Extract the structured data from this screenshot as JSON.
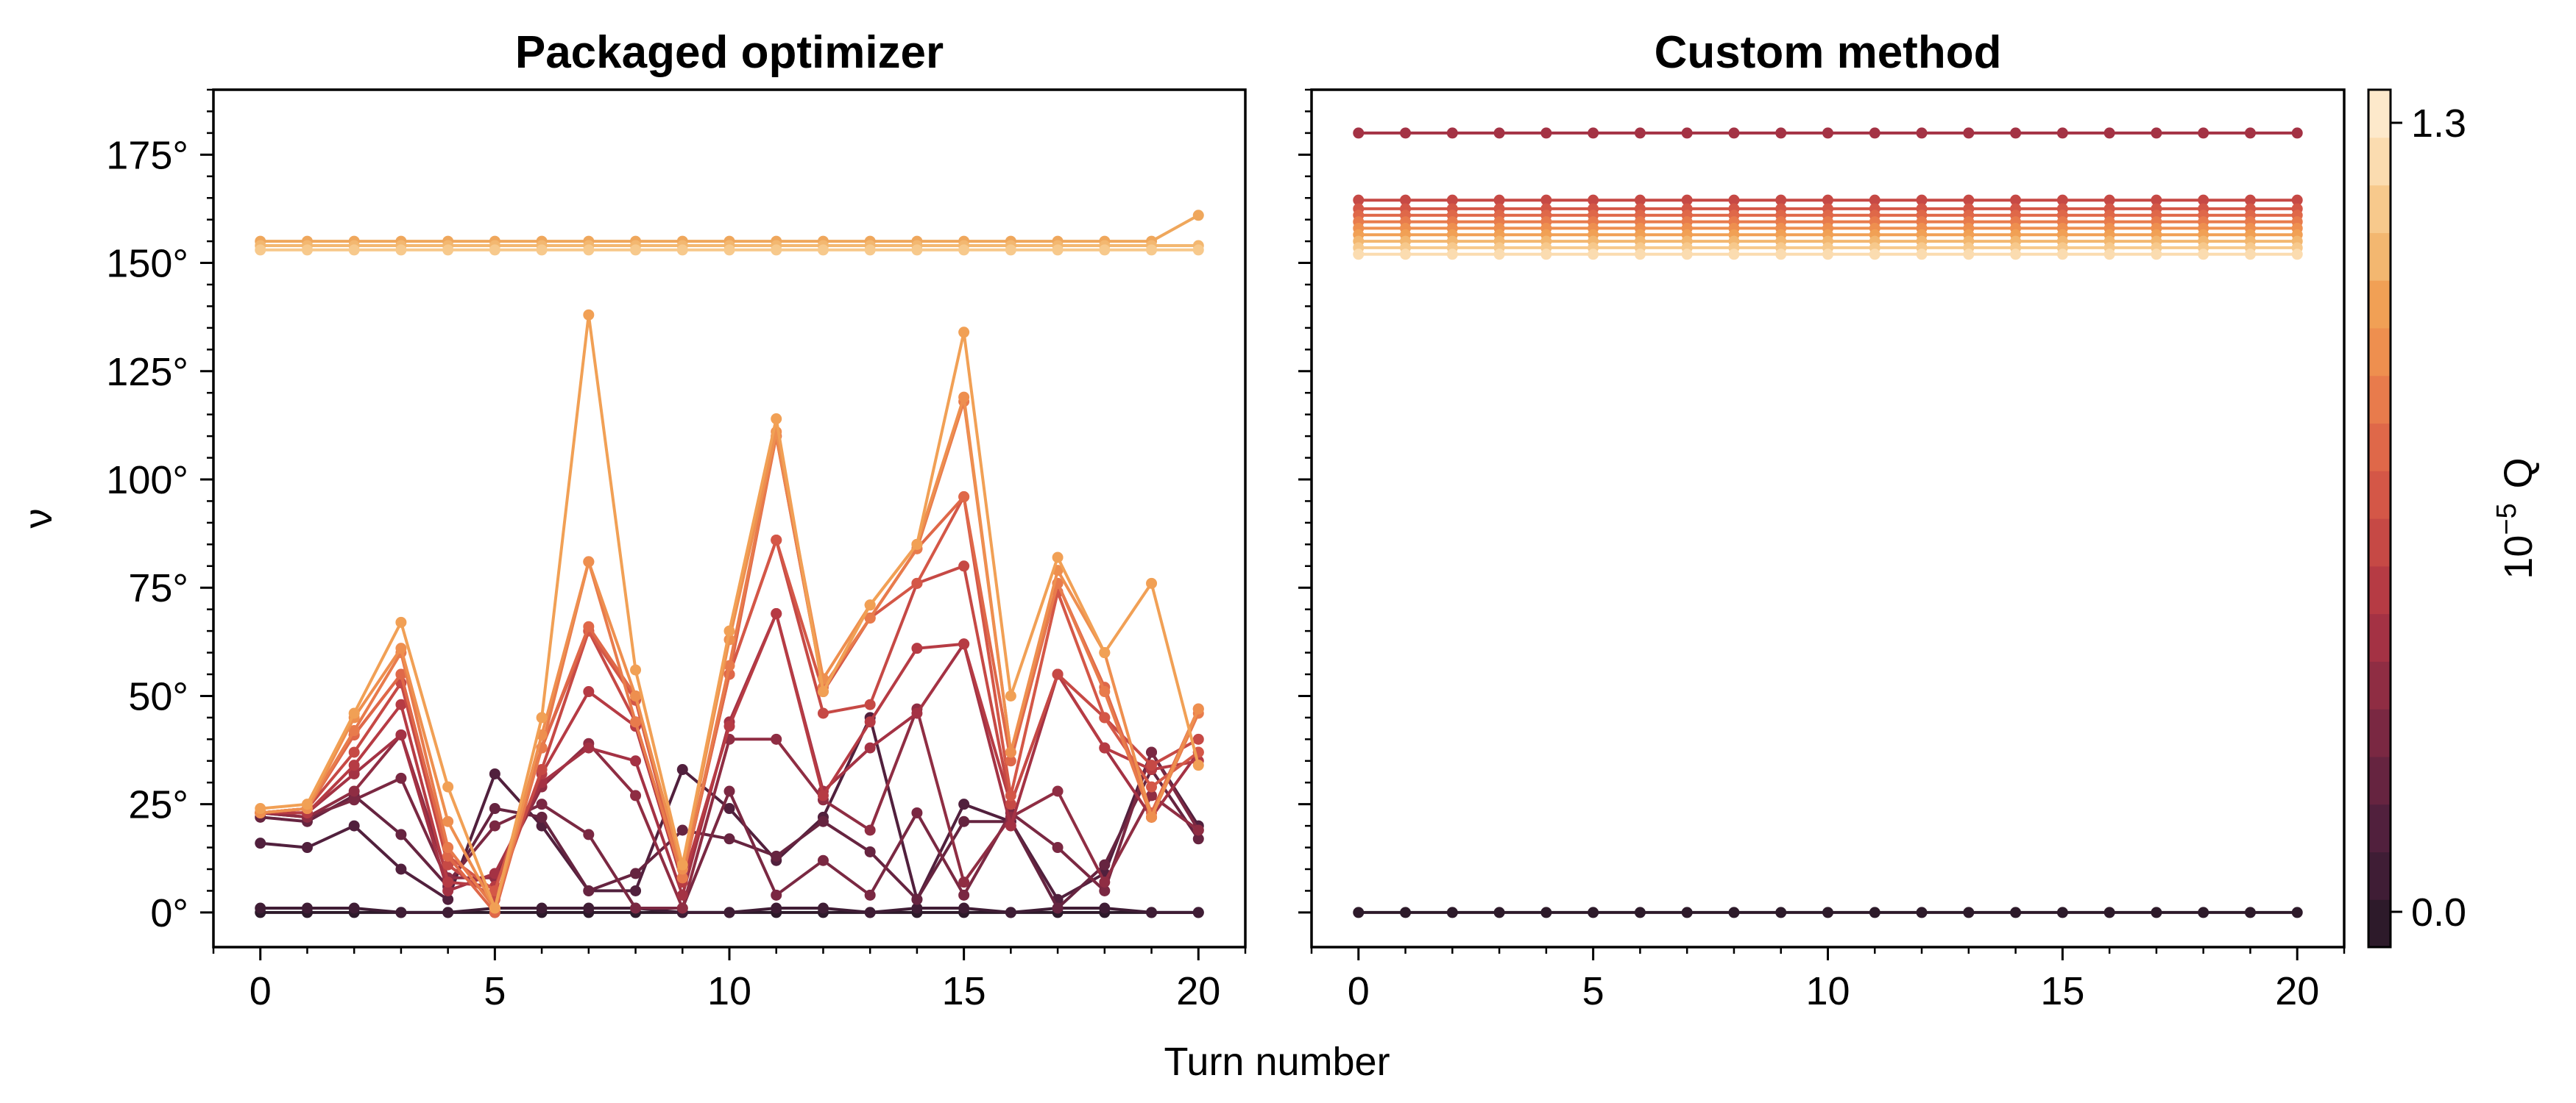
{
  "chart_data": [
    {
      "type": "line",
      "title": "Packaged optimizer",
      "xlabel": "Turn number",
      "ylabel": "ν",
      "xlim": [
        -1,
        21
      ],
      "ylim": [
        -8,
        190
      ],
      "xticks": [
        0,
        5,
        10,
        15,
        20
      ],
      "xtick_labels": [
        "0",
        "5",
        "10",
        "15",
        "20"
      ],
      "yticks": [
        0,
        25,
        50,
        75,
        100,
        125,
        150,
        175
      ],
      "ytick_labels": [
        "0°",
        "25°",
        "50°",
        "75°",
        "100°",
        "125°",
        "150°",
        "175°"
      ],
      "x": [
        0,
        1,
        2,
        3,
        4,
        5,
        6,
        7,
        8,
        9,
        10,
        11,
        12,
        13,
        14,
        15,
        16,
        17,
        18,
        19,
        20
      ],
      "series": [
        {
          "color": "#2d1a2a",
          "values": [
            0,
            0,
            0,
            0,
            0,
            0,
            0,
            0,
            0,
            0,
            0,
            0,
            0,
            0,
            0,
            0,
            0,
            0,
            0,
            0,
            0
          ]
        },
        {
          "color": "#3f1d35",
          "values": [
            1,
            1,
            1,
            0,
            0,
            1,
            1,
            1,
            1,
            0,
            0,
            1,
            1,
            0,
            1,
            1,
            0,
            1,
            1,
            0,
            0
          ]
        },
        {
          "color": "#51203d",
          "values": [
            16,
            15,
            20,
            10,
            3,
            32,
            20,
            5,
            5,
            33,
            24,
            12,
            22,
            45,
            3,
            25,
            21,
            3,
            9,
            37,
            20
          ]
        },
        {
          "color": "#662440",
          "values": [
            22,
            21,
            27,
            18,
            6,
            24,
            22,
            5,
            9,
            19,
            17,
            13,
            21,
            14,
            3,
            21,
            21,
            1,
            11,
            33,
            17
          ]
        },
        {
          "color": "#7a2842",
          "values": [
            23,
            22,
            26,
            31,
            7,
            20,
            25,
            18,
            1,
            1,
            28,
            4,
            12,
            4,
            23,
            4,
            23,
            15,
            5,
            37,
            19
          ]
        },
        {
          "color": "#8f2d43",
          "values": [
            23,
            22,
            28,
            41,
            8,
            8,
            29,
            39,
            27,
            1,
            40,
            40,
            26,
            19,
            47,
            7,
            22,
            28,
            7,
            27,
            19
          ]
        },
        {
          "color": "#a43244",
          "values": [
            23,
            23,
            32,
            41,
            5,
            9,
            30,
            38,
            35,
            4,
            44,
            69,
            28,
            38,
            46,
            62,
            20,
            55,
            38,
            22,
            37
          ]
        },
        {
          "color": "#b63b44",
          "values": [
            23,
            23,
            34,
            48,
            7,
            6,
            32,
            51,
            43,
            7,
            43,
            69,
            27,
            44,
            61,
            62,
            25,
            55,
            38,
            33,
            35
          ]
        },
        {
          "color": "#c64945",
          "values": [
            23,
            24,
            37,
            53,
            11,
            3,
            33,
            65,
            44,
            8,
            55,
            86,
            46,
            48,
            76,
            80,
            25,
            55,
            45,
            34,
            40
          ]
        },
        {
          "color": "#d45747",
          "values": [
            23,
            24,
            41,
            55,
            13,
            5,
            38,
            65,
            49,
            8,
            55,
            86,
            51,
            68,
            76,
            96,
            27,
            74,
            45,
            29,
            37
          ]
        },
        {
          "color": "#df6849",
          "values": [
            23,
            24,
            41,
            55,
            13,
            0,
            38,
            66,
            50,
            8,
            55,
            110,
            52,
            68,
            84,
            96,
            35,
            76,
            52,
            23,
            47
          ]
        },
        {
          "color": "#e87b4c",
          "values": [
            23,
            24,
            42,
            60,
            15,
            1,
            38,
            81,
            44,
            8,
            57,
            110,
            52,
            68,
            84,
            118,
            37,
            76,
            51,
            22,
            46
          ]
        },
        {
          "color": "#ee8f4f",
          "values": [
            23,
            24,
            45,
            61,
            21,
            1,
            41,
            81,
            50,
            10,
            63,
            111,
            54,
            71,
            85,
            119,
            37,
            79,
            60,
            22,
            47
          ]
        },
        {
          "color": "#f1a055",
          "values": [
            24,
            25,
            46,
            67,
            29,
            1,
            45,
            138,
            56,
            11,
            65,
            114,
            51,
            71,
            85,
            134,
            50,
            82,
            60,
            76,
            34
          ]
        },
        {
          "color": "#efa75c",
          "values": [
            155,
            155,
            155,
            155,
            155,
            155,
            155,
            155,
            155,
            155,
            155,
            155,
            155,
            155,
            155,
            155,
            155,
            155,
            155,
            155,
            161
          ]
        },
        {
          "color": "#f3b770",
          "values": [
            154,
            154,
            154,
            154,
            154,
            154,
            154,
            154,
            154,
            154,
            154,
            154,
            154,
            154,
            154,
            154,
            154,
            154,
            154,
            154,
            154
          ]
        },
        {
          "color": "#f7c98c",
          "values": [
            153,
            153,
            153,
            153,
            153,
            153,
            153,
            153,
            153,
            153,
            153,
            153,
            153,
            153,
            153,
            153,
            153,
            153,
            153,
            153,
            153
          ]
        }
      ]
    },
    {
      "type": "line",
      "title": "Custom method",
      "xlabel": "Turn number",
      "xlim": [
        -1,
        21
      ],
      "ylim": [
        -8,
        190
      ],
      "xticks": [
        0,
        5,
        10,
        15,
        20
      ],
      "xtick_labels": [
        "0",
        "5",
        "10",
        "15",
        "20"
      ],
      "yticks": [
        0,
        25,
        50,
        75,
        100,
        125,
        150,
        175
      ],
      "x": [
        0,
        1,
        2,
        3,
        4,
        5,
        6,
        7,
        8,
        9,
        10,
        11,
        12,
        13,
        14,
        15,
        16,
        17,
        18,
        19,
        20
      ],
      "series": [
        {
          "color": "#2d1a2a",
          "values": [
            0,
            0,
            0,
            0,
            0,
            0,
            0,
            0,
            0,
            0,
            0,
            0,
            0,
            0,
            0,
            0,
            0,
            0,
            0,
            0,
            0
          ]
        },
        {
          "color": "#a43244",
          "values": [
            180,
            180,
            180,
            180,
            180,
            180,
            180,
            180,
            180,
            180,
            180,
            180,
            180,
            180,
            180,
            180,
            180,
            180,
            180,
            180,
            180
          ]
        },
        {
          "color": "#c64945",
          "values": [
            164.5,
            164.5,
            164.5,
            164.5,
            164.5,
            164.5,
            164.5,
            164.5,
            164.5,
            164.5,
            164.5,
            164.5,
            164.5,
            164.5,
            164.5,
            164.5,
            164.5,
            164.5,
            164.5,
            164.5,
            164.5
          ]
        },
        {
          "color": "#d45747",
          "values": [
            162.5,
            162.5,
            162.5,
            162.5,
            162.5,
            162.5,
            162.5,
            162.5,
            162.5,
            162.5,
            162.5,
            162.5,
            162.5,
            162.5,
            162.5,
            162.5,
            162.5,
            162.5,
            162.5,
            162.5,
            162.5
          ]
        },
        {
          "color": "#df6849",
          "values": [
            161,
            161,
            161,
            161,
            161,
            161,
            161,
            161,
            161,
            161,
            161,
            161,
            161,
            161,
            161,
            161,
            161,
            161,
            161,
            161,
            161
          ]
        },
        {
          "color": "#e87b4c",
          "values": [
            159.5,
            159.5,
            159.5,
            159.5,
            159.5,
            159.5,
            159.5,
            159.5,
            159.5,
            159.5,
            159.5,
            159.5,
            159.5,
            159.5,
            159.5,
            159.5,
            159.5,
            159.5,
            159.5,
            159.5,
            159.5
          ]
        },
        {
          "color": "#ee8f4f",
          "values": [
            158,
            158,
            158,
            158,
            158,
            158,
            158,
            158,
            158,
            158,
            158,
            158,
            158,
            158,
            158,
            158,
            158,
            158,
            158,
            158,
            158
          ]
        },
        {
          "color": "#f1a055",
          "values": [
            156.5,
            156.5,
            156.5,
            156.5,
            156.5,
            156.5,
            156.5,
            156.5,
            156.5,
            156.5,
            156.5,
            156.5,
            156.5,
            156.5,
            156.5,
            156.5,
            156.5,
            156.5,
            156.5,
            156.5,
            156.5
          ]
        },
        {
          "color": "#f3b770",
          "values": [
            155,
            155,
            155,
            155,
            155,
            155,
            155,
            155,
            155,
            155,
            155,
            155,
            155,
            155,
            155,
            155,
            155,
            155,
            155,
            155,
            155
          ]
        },
        {
          "color": "#f7c98c",
          "values": [
            153.5,
            153.5,
            153.5,
            153.5,
            153.5,
            153.5,
            153.5,
            153.5,
            153.5,
            153.5,
            153.5,
            153.5,
            153.5,
            153.5,
            153.5,
            153.5,
            153.5,
            153.5,
            153.5,
            153.5,
            153.5
          ]
        },
        {
          "color": "#fbdcb0",
          "values": [
            152,
            152,
            152,
            152,
            152,
            152,
            152,
            152,
            152,
            152,
            152,
            152,
            152,
            152,
            152,
            152,
            152,
            152,
            152,
            152,
            152
          ]
        }
      ]
    }
  ],
  "colorbar": {
    "label_prefix": "10",
    "label_exponent": "−5",
    "label_suffix": "Q",
    "range": [
      0.0,
      1.3
    ],
    "ticks": [
      0.0,
      1.3
    ],
    "tick_labels": [
      "0.0",
      "1.3"
    ],
    "colors": [
      "#2d1a2a",
      "#3f1d35",
      "#51203d",
      "#662440",
      "#7a2842",
      "#8f2d43",
      "#a43244",
      "#b63b44",
      "#c64945",
      "#d45747",
      "#df6849",
      "#e87b4c",
      "#ee8f4f",
      "#f1a055",
      "#f3b770",
      "#f7c98c",
      "#fbdcb0",
      "#fde9cb"
    ]
  },
  "shared_xlabel": "Turn number"
}
